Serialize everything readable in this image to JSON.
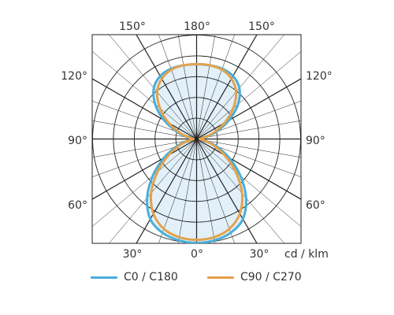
{
  "chart_data": {
    "type": "polar-line",
    "unit_label": "cd / klm",
    "angle_labels": {
      "top": [
        "150°",
        "180°",
        "150°"
      ],
      "upper_side": [
        "120°",
        "120°"
      ],
      "middle_side": [
        "90°",
        "90°"
      ],
      "lower_side": [
        "60°",
        "60°"
      ],
      "bottom": [
        "30°",
        "0°",
        "30°"
      ]
    },
    "series": [
      {
        "name": "C0 / C180",
        "color": "#4aaedb",
        "fill": "#dcedf8",
        "angles_deg": [
          0,
          10,
          20,
          30,
          40,
          50,
          60,
          70,
          80,
          90,
          100,
          110,
          120,
          130,
          140,
          150,
          160,
          170,
          180
        ],
        "values": [
          1.0,
          0.99,
          0.96,
          0.89,
          0.74,
          0.55,
          0.36,
          0.2,
          0.08,
          0.03,
          0.08,
          0.2,
          0.36,
          0.52,
          0.64,
          0.7,
          0.72,
          0.72,
          0.72
        ]
      },
      {
        "name": "C90 / C270",
        "color": "#e3a24c",
        "fill": "none",
        "angles_deg": [
          0,
          10,
          20,
          30,
          40,
          50,
          60,
          70,
          80,
          90,
          100,
          110,
          120,
          130,
          140,
          150,
          160,
          170,
          180
        ],
        "values": [
          0.97,
          0.96,
          0.92,
          0.83,
          0.68,
          0.49,
          0.31,
          0.17,
          0.07,
          0.03,
          0.07,
          0.17,
          0.31,
          0.46,
          0.59,
          0.67,
          0.71,
          0.72,
          0.72
        ]
      }
    ]
  }
}
